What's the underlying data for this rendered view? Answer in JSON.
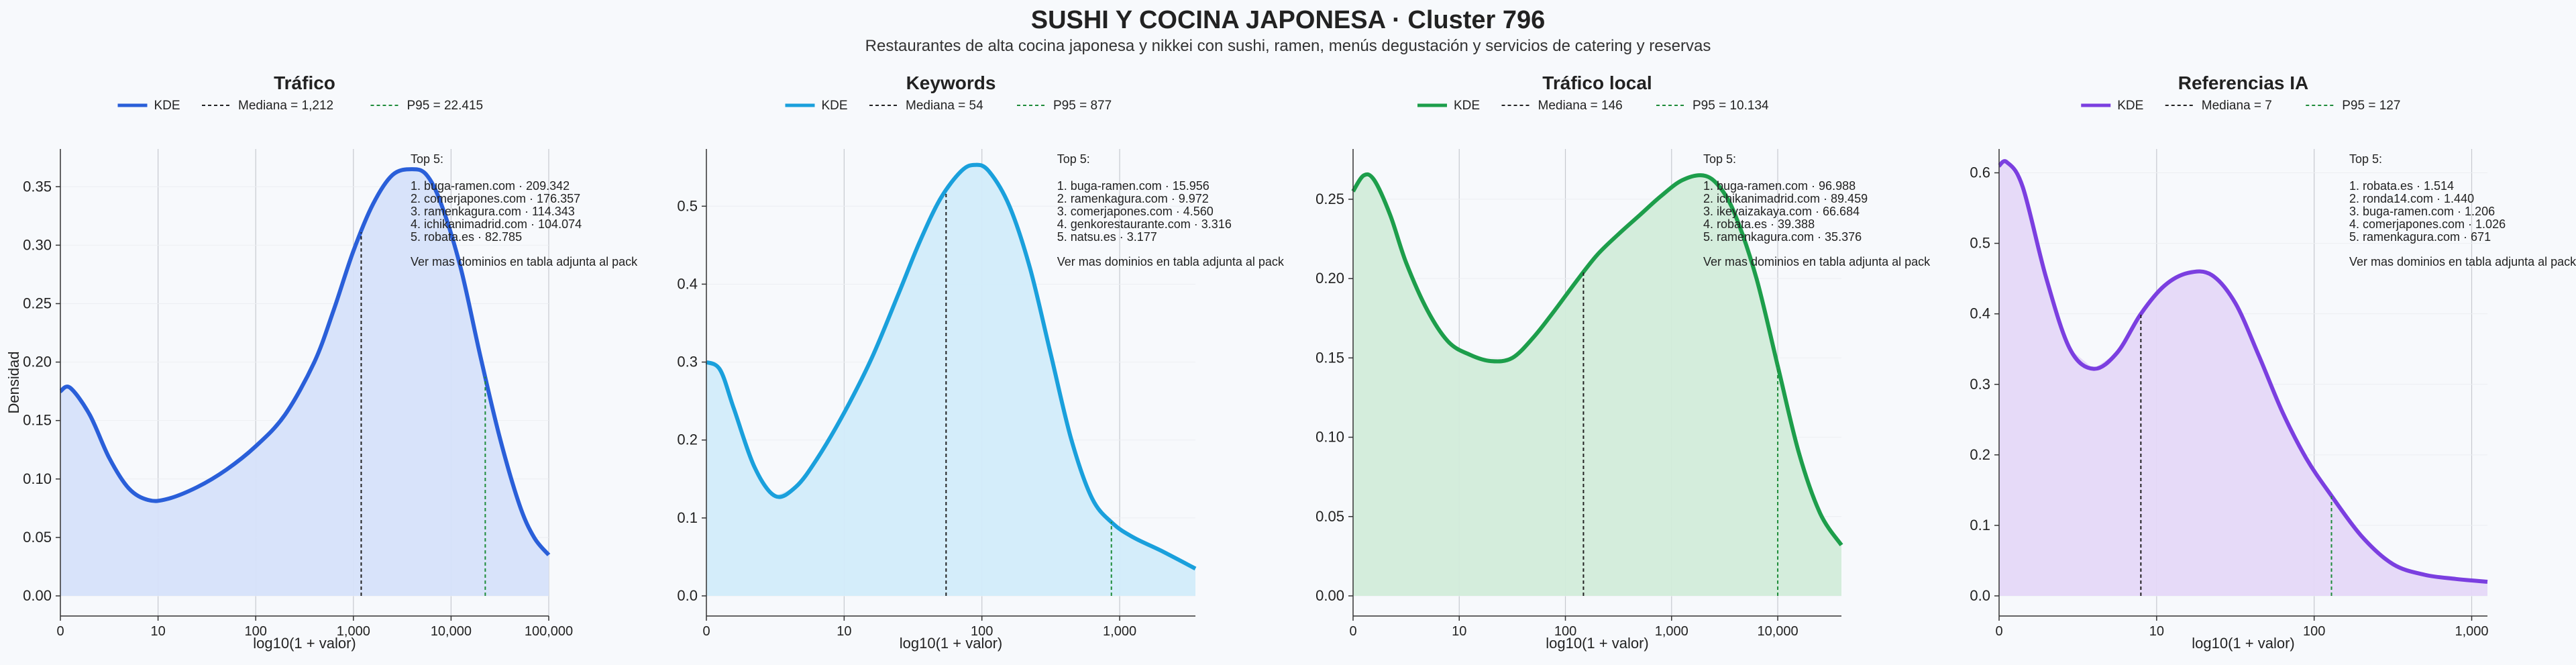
{
  "page": {
    "title": "SUSHI Y COCINA JAPONESA · Cluster 796",
    "subtitle": "Restaurantes de alta cocina japonesa y nikkei con sushi, ramen, menús degustación y servicios de catering y reservas"
  },
  "chart_data": [
    {
      "type": "area",
      "title": "Tráfico",
      "color": "#2a5fd9",
      "fill": "#d6e1fa",
      "xlabel": "log10(1 + valor)",
      "ylabel": "Densidad",
      "xlim": [
        0,
        5.0
      ],
      "ylim": [
        0,
        0.38
      ],
      "x_ticks": [
        0,
        1,
        2,
        3,
        4,
        5
      ],
      "x_ticklabels": [
        "0",
        "10",
        "100",
        "1,000",
        "10,000",
        "100,000"
      ],
      "y_ticks": [
        0,
        0.05,
        0.1,
        0.15,
        0.2,
        0.25,
        0.3,
        0.35
      ],
      "y_ticklabels": [
        "0.00",
        "0.05",
        "0.10",
        "0.15",
        "0.20",
        "0.25",
        "0.30",
        "0.35"
      ],
      "legend": {
        "kde": "KDE",
        "median": "Mediana = 1,212",
        "p95": "P95 = 22.415"
      },
      "median_x": 3.08,
      "p95_x": 4.35,
      "kde": {
        "x": [
          0,
          0.1,
          0.3,
          0.5,
          0.7,
          0.9,
          1.1,
          1.4,
          1.7,
          2.0,
          2.3,
          2.6,
          2.8,
          3.0,
          3.2,
          3.4,
          3.6,
          3.75,
          3.9,
          4.1,
          4.3,
          4.5,
          4.7,
          4.85,
          5.0
        ],
        "y": [
          0.175,
          0.178,
          0.155,
          0.118,
          0.092,
          0.082,
          0.083,
          0.093,
          0.108,
          0.128,
          0.155,
          0.2,
          0.245,
          0.295,
          0.335,
          0.36,
          0.365,
          0.36,
          0.335,
          0.28,
          0.205,
          0.135,
          0.078,
          0.05,
          0.035
        ]
      },
      "top5_title": "Top 5:",
      "top5": [
        "1. buga-ramen.com · 209.342",
        "2. comerjapones.com · 176.357",
        "3. ramenkagura.com · 114.343",
        "4. ichikanimadrid.com · 104.074",
        "5. robata.es · 82.785"
      ],
      "footnote": "Ver mas dominios en tabla adjunta al pack"
    },
    {
      "type": "area",
      "title": "Keywords",
      "color": "#1aa0dc",
      "fill": "#d2ecfa",
      "xlabel": "log10(1 + valor)",
      "ylabel": "",
      "xlim": [
        0,
        3.55
      ],
      "ylim": [
        0,
        0.57
      ],
      "x_ticks": [
        0,
        1,
        2,
        3
      ],
      "x_ticklabels": [
        "0",
        "10",
        "100",
        "1,000"
      ],
      "y_ticks": [
        0,
        0.1,
        0.2,
        0.3,
        0.4,
        0.5
      ],
      "y_ticklabels": [
        "0.0",
        "0.1",
        "0.2",
        "0.3",
        "0.4",
        "0.5"
      ],
      "legend": {
        "kde": "KDE",
        "median": "Mediana = 54",
        "p95": "P95 = 877"
      },
      "median_x": 1.74,
      "p95_x": 2.94,
      "kde": {
        "x": [
          0,
          0.1,
          0.2,
          0.35,
          0.5,
          0.65,
          0.8,
          1.0,
          1.2,
          1.4,
          1.55,
          1.7,
          1.85,
          1.95,
          2.05,
          2.2,
          2.35,
          2.5,
          2.65,
          2.8,
          2.95,
          3.1,
          3.3,
          3.55
        ],
        "y": [
          0.3,
          0.29,
          0.24,
          0.165,
          0.128,
          0.14,
          0.175,
          0.235,
          0.305,
          0.39,
          0.455,
          0.51,
          0.545,
          0.553,
          0.545,
          0.5,
          0.42,
          0.31,
          0.2,
          0.125,
          0.093,
          0.075,
          0.058,
          0.035
        ]
      },
      "top5_title": "Top 5:",
      "top5": [
        "1. buga-ramen.com · 15.956",
        "2. ramenkagura.com · 9.972",
        "3. comerjapones.com · 4.560",
        "4. genkorestaurante.com · 3.316",
        "5. natsu.es · 3.177"
      ],
      "footnote": "Ver mas dominios en tabla adjunta al pack"
    },
    {
      "type": "area",
      "title": "Tráfico local",
      "color": "#1d9e4b",
      "fill": "#d2ecda",
      "xlabel": "log10(1 + valor)",
      "ylabel": "",
      "xlim": [
        0,
        4.6
      ],
      "ylim": [
        0,
        0.28
      ],
      "x_ticks": [
        0,
        1,
        2,
        3,
        4
      ],
      "x_ticklabels": [
        "0",
        "10",
        "100",
        "1,000",
        "10,000"
      ],
      "y_ticks": [
        0,
        0.05,
        0.1,
        0.15,
        0.2,
        0.25
      ],
      "y_ticklabels": [
        "0.00",
        "0.05",
        "0.10",
        "0.15",
        "0.20",
        "0.25"
      ],
      "legend": {
        "kde": "KDE",
        "median": "Mediana = 146",
        "p95": "P95 = 10.134"
      },
      "median_x": 2.17,
      "p95_x": 4.0,
      "kde": {
        "x": [
          0,
          0.1,
          0.2,
          0.35,
          0.5,
          0.7,
          0.9,
          1.1,
          1.3,
          1.5,
          1.7,
          1.9,
          2.1,
          2.3,
          2.5,
          2.7,
          2.9,
          3.1,
          3.3,
          3.45,
          3.6,
          3.8,
          4.0,
          4.2,
          4.4,
          4.6
        ],
        "y": [
          0.255,
          0.265,
          0.262,
          0.24,
          0.21,
          0.18,
          0.16,
          0.152,
          0.148,
          0.15,
          0.163,
          0.18,
          0.198,
          0.215,
          0.228,
          0.24,
          0.252,
          0.262,
          0.265,
          0.258,
          0.24,
          0.2,
          0.145,
          0.09,
          0.052,
          0.032
        ]
      },
      "top5_title": "Top 5:",
      "top5": [
        "1. buga-ramen.com · 96.988",
        "2. ichikanimadrid.com · 89.459",
        "3. ikeyaizakaya.com · 66.684",
        "4. robata.es · 39.388",
        "5. ramenkagura.com · 35.376"
      ],
      "footnote": "Ver mas dominios en tabla adjunta al pack"
    },
    {
      "type": "area",
      "title": "Referencias IA",
      "color": "#7b3fe0",
      "fill": "#e5d8f8",
      "xlabel": "log10(1 + valor)",
      "ylabel": "",
      "xlim": [
        0,
        3.1
      ],
      "ylim": [
        0,
        0.63
      ],
      "x_ticks": [
        0,
        1,
        2,
        3
      ],
      "x_ticklabels": [
        "0",
        "10",
        "100",
        "1,000"
      ],
      "y_ticks": [
        0,
        0.1,
        0.2,
        0.3,
        0.4,
        0.5,
        0.6
      ],
      "y_ticklabels": [
        "0.0",
        "0.1",
        "0.2",
        "0.3",
        "0.4",
        "0.5",
        "0.6"
      ],
      "legend": {
        "kde": "KDE",
        "median": "Mediana = 7",
        "p95": "P95 = 127"
      },
      "median_x": 0.9,
      "p95_x": 2.11,
      "kde": {
        "x": [
          0,
          0.05,
          0.15,
          0.3,
          0.45,
          0.6,
          0.75,
          0.9,
          1.05,
          1.2,
          1.35,
          1.5,
          1.65,
          1.8,
          1.95,
          2.1,
          2.3,
          2.5,
          2.7,
          2.9,
          3.1
        ],
        "y": [
          0.61,
          0.615,
          0.58,
          0.45,
          0.35,
          0.322,
          0.345,
          0.4,
          0.44,
          0.458,
          0.455,
          0.415,
          0.34,
          0.26,
          0.195,
          0.145,
          0.085,
          0.045,
          0.03,
          0.024,
          0.02
        ]
      },
      "top5_title": "Top 5:",
      "top5": [
        "1. robata.es · 1.514",
        "2. ronda14.com · 1.440",
        "3. buga-ramen.com · 1.206",
        "4. comerjapones.com · 1.026",
        "5. ramenkagura.com · 671"
      ],
      "footnote": "Ver mas dominios en tabla adjunta al pack"
    }
  ]
}
